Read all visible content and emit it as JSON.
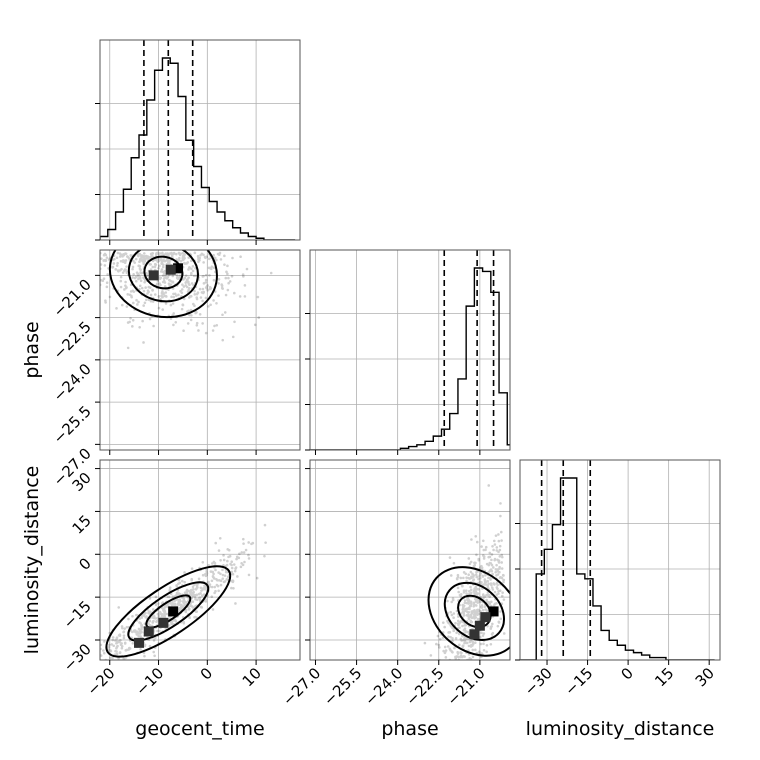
{
  "chart_data": {
    "type": "corner",
    "parameters": [
      "geocent_time",
      "phase",
      "luminosity_distance"
    ],
    "axes": {
      "geocent_time": {
        "range": [
          -22,
          19
        ],
        "ticks": [
          -20,
          -10,
          0,
          10
        ],
        "tick_labels": [
          "−20",
          "−10",
          "0",
          "10"
        ],
        "quantiles": [
          -13,
          -8,
          -3
        ],
        "histogram": {
          "bin_edges": [
            -22,
            -20.4,
            -18.8,
            -17.2,
            -15.6,
            -14,
            -12.4,
            -10.8,
            -9.2,
            -7.6,
            -6,
            -4.4,
            -2.8,
            -1.2,
            0.4,
            2,
            3.6,
            5.2,
            6.8,
            8.4,
            10,
            11.6,
            13.2,
            14.8,
            16.4,
            18
          ],
          "counts": [
            2,
            6,
            16,
            29,
            47,
            60,
            80,
            97,
            104,
            101,
            82,
            57,
            42,
            30,
            22,
            16,
            11,
            7,
            4,
            2,
            1,
            0,
            0,
            0,
            0
          ]
        }
      },
      "phase": {
        "range": [
          -27.2,
          -19.9
        ],
        "ticks": [
          -27.0,
          -25.5,
          -24.0,
          -22.5,
          -21.0
        ],
        "tick_labels": [
          "−27.0",
          "−25.5",
          "−24.0",
          "−22.5",
          "−21.0"
        ],
        "quantiles": [
          -22.3,
          -21.1,
          -20.5
        ],
        "histogram": {
          "bin_edges": [
            -27.2,
            -26.9,
            -26.6,
            -26.3,
            -26,
            -25.7,
            -25.4,
            -25.1,
            -24.8,
            -24.5,
            -24.2,
            -23.9,
            -23.6,
            -23.3,
            -23,
            -22.7,
            -22.4,
            -22.1,
            -21.8,
            -21.5,
            -21.2,
            -20.9,
            -20.6,
            -20.3,
            -20,
            -19.7
          ],
          "counts": [
            0,
            0,
            0,
            0,
            0,
            0,
            0,
            0,
            0,
            0,
            0,
            1,
            2,
            3,
            5,
            8,
            12,
            21,
            41,
            83,
            105,
            103,
            91,
            33,
            3
          ]
        }
      },
      "luminosity_distance": {
        "range": [
          -40,
          34
        ],
        "ticks": [
          -30,
          -15,
          0,
          15,
          30
        ],
        "tick_labels": [
          "−30",
          "−15",
          "0",
          "15",
          "30"
        ],
        "quantiles": [
          -32,
          -24,
          -14
        ],
        "histogram": {
          "bin_edges": [
            -40,
            -37,
            -34,
            -31,
            -28,
            -25,
            -22,
            -19,
            -16,
            -13,
            -10,
            -7,
            -4,
            -1,
            2,
            5,
            8,
            11,
            14,
            17,
            20,
            23,
            26,
            29,
            32
          ],
          "counts": [
            0,
            0,
            35,
            45,
            55,
            74,
            74,
            35,
            33,
            22,
            12,
            8,
            6,
            4,
            3,
            2,
            1,
            1,
            0,
            0,
            0,
            0,
            0,
            0
          ]
        }
      }
    },
    "panel_ranges": {
      "phase_y": [
        -27.2,
        -20.1
      ],
      "luminosity_distance_y": [
        -37,
        33
      ]
    },
    "grid": true,
    "hist_y_ticks": 4,
    "scatter_summary": {
      "geocent_time_vs_phase": {
        "center": [
          -9,
          -20.9
        ],
        "spread": [
          7,
          0.9
        ],
        "correlation": -0.25
      },
      "geocent_time_vs_luminosity_distance": {
        "center": [
          -8,
          -20
        ],
        "spread": [
          8,
          10
        ],
        "correlation": 0.92
      },
      "phase_vs_luminosity_distance": {
        "center": [
          -21.2,
          -20
        ],
        "spread": [
          0.6,
          12
        ],
        "correlation": 0.55
      }
    },
    "peak_cells": {
      "geocent_time_vs_phase": [
        [
          -6,
          -20.75
        ],
        [
          -11,
          -21.0
        ],
        [
          -7.5,
          -20.8
        ]
      ],
      "geocent_time_vs_luminosity_distance": [
        [
          -7,
          -20
        ],
        [
          -9,
          -24
        ],
        [
          -12,
          -27
        ],
        [
          -14,
          -31
        ]
      ],
      "phase_vs_luminosity_distance": [
        [
          -20.5,
          -20
        ],
        [
          -20.8,
          -22
        ],
        [
          -21.0,
          -25
        ],
        [
          -21.2,
          -28
        ]
      ]
    }
  }
}
